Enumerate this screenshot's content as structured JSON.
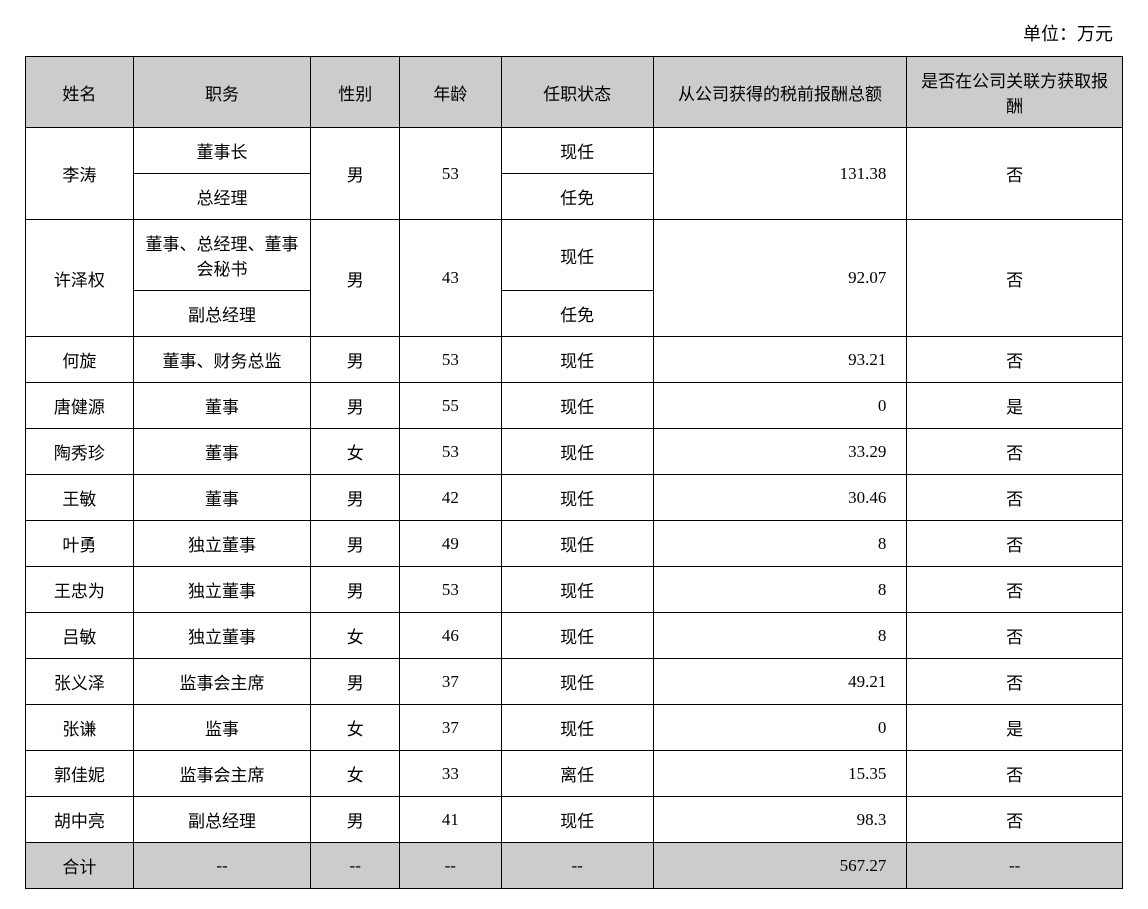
{
  "unit_label": "单位：万元",
  "table": {
    "columns": [
      "姓名",
      "职务",
      "性别",
      "年龄",
      "任职状态",
      "从公司获得的税前报酬总额",
      "是否在公司关联方获取报酬"
    ],
    "column_widths_pct": [
      8.5,
      14,
      7,
      8,
      12,
      20,
      17
    ],
    "header_bg": "#cccccc",
    "border_color": "#000000",
    "text_color": "#000000",
    "font_size_pt": 13,
    "comp_align": "right",
    "rows": [
      {
        "name": "李涛",
        "positions": [
          "董事长",
          "总经理"
        ],
        "gender": "男",
        "age": "53",
        "statuses": [
          "现任",
          "任免"
        ],
        "compensation": "131.38",
        "related": "否",
        "merged": true
      },
      {
        "name": "许泽权",
        "positions": [
          "董事、总经理、董事会秘书",
          "副总经理"
        ],
        "gender": "男",
        "age": "43",
        "statuses": [
          "现任",
          "任免"
        ],
        "compensation": "92.07",
        "related": "否",
        "merged": true
      },
      {
        "name": "何旋",
        "positions": [
          "董事、财务总监"
        ],
        "gender": "男",
        "age": "53",
        "statuses": [
          "现任"
        ],
        "compensation": "93.21",
        "related": "否",
        "merged": false
      },
      {
        "name": "唐健源",
        "positions": [
          "董事"
        ],
        "gender": "男",
        "age": "55",
        "statuses": [
          "现任"
        ],
        "compensation": "0",
        "related": "是",
        "merged": false
      },
      {
        "name": "陶秀珍",
        "positions": [
          "董事"
        ],
        "gender": "女",
        "age": "53",
        "statuses": [
          "现任"
        ],
        "compensation": "33.29",
        "related": "否",
        "merged": false
      },
      {
        "name": "王敏",
        "positions": [
          "董事"
        ],
        "gender": "男",
        "age": "42",
        "statuses": [
          "现任"
        ],
        "compensation": "30.46",
        "related": "否",
        "merged": false
      },
      {
        "name": "叶勇",
        "positions": [
          "独立董事"
        ],
        "gender": "男",
        "age": "49",
        "statuses": [
          "现任"
        ],
        "compensation": "8",
        "related": "否",
        "merged": false
      },
      {
        "name": "王忠为",
        "positions": [
          "独立董事"
        ],
        "gender": "男",
        "age": "53",
        "statuses": [
          "现任"
        ],
        "compensation": "8",
        "related": "否",
        "merged": false
      },
      {
        "name": "吕敏",
        "positions": [
          "独立董事"
        ],
        "gender": "女",
        "age": "46",
        "statuses": [
          "现任"
        ],
        "compensation": "8",
        "related": "否",
        "merged": false
      },
      {
        "name": "张义泽",
        "positions": [
          "监事会主席"
        ],
        "gender": "男",
        "age": "37",
        "statuses": [
          "现任"
        ],
        "compensation": "49.21",
        "related": "否",
        "merged": false
      },
      {
        "name": "张谦",
        "positions": [
          "监事"
        ],
        "gender": "女",
        "age": "37",
        "statuses": [
          "现任"
        ],
        "compensation": "0",
        "related": "是",
        "merged": false
      },
      {
        "name": "郭佳妮",
        "positions": [
          "监事会主席"
        ],
        "gender": "女",
        "age": "33",
        "statuses": [
          "离任"
        ],
        "compensation": "15.35",
        "related": "否",
        "merged": false
      },
      {
        "name": "胡中亮",
        "positions": [
          "副总经理"
        ],
        "gender": "男",
        "age": "41",
        "statuses": [
          "现任"
        ],
        "compensation": "98.3",
        "related": "否",
        "merged": false
      }
    ],
    "total_row": {
      "label": "合计",
      "dash": "--",
      "compensation": "567.27",
      "bg": "#cccccc"
    }
  }
}
